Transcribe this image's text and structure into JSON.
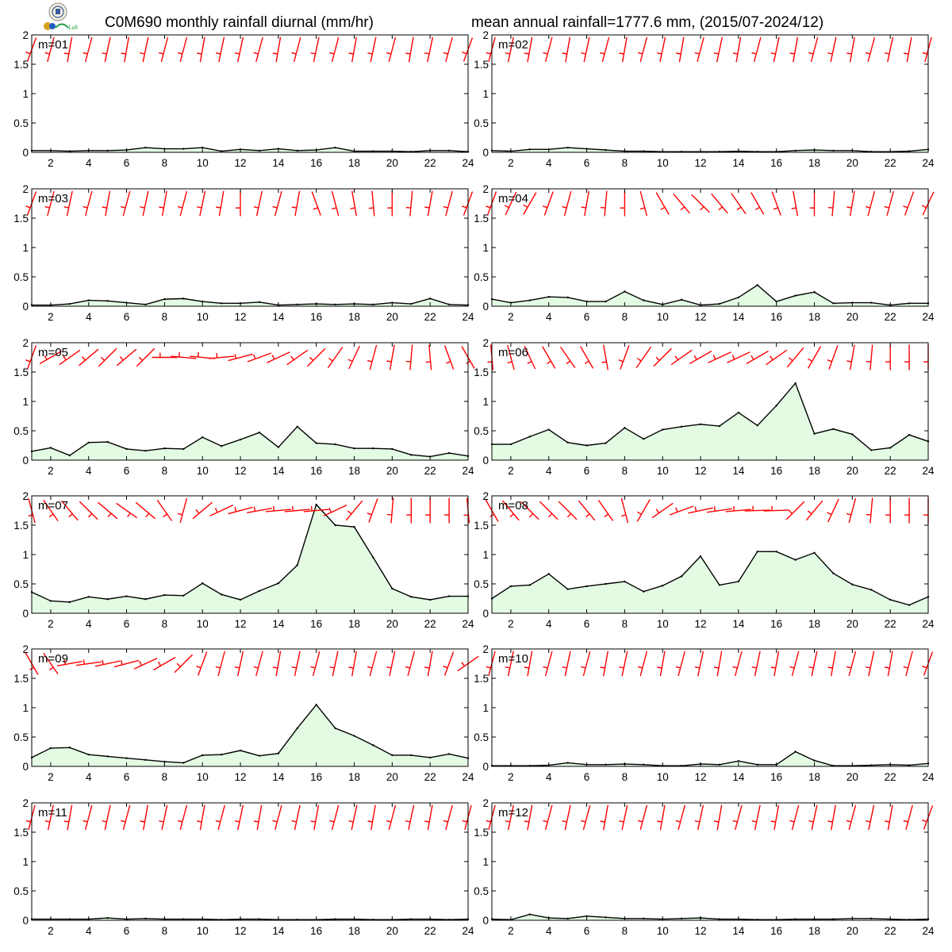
{
  "header": {
    "title_left": "C0M690 monthly rainfall diurnal (mm/hr)",
    "title_right": "mean annual rainfall=1777.6 mm, (2015/07-2024/12)"
  },
  "colors": {
    "fill": "#e3fbe3",
    "line": "#000000",
    "wind": "#ff0000",
    "frame": "#000000"
  },
  "logo": {
    "icon": "emblem-icon",
    "text": "Lab"
  },
  "chart_data": [
    {
      "type": "area",
      "label": "m=01",
      "x": [
        1,
        2,
        3,
        4,
        5,
        6,
        7,
        8,
        9,
        10,
        11,
        12,
        13,
        14,
        15,
        16,
        17,
        18,
        19,
        20,
        21,
        22,
        23,
        24
      ],
      "values": [
        0.03,
        0.03,
        0.02,
        0.03,
        0.03,
        0.04,
        0.08,
        0.06,
        0.06,
        0.08,
        0.02,
        0.05,
        0.03,
        0.06,
        0.03,
        0.04,
        0.08,
        0.02,
        0.02,
        0.02,
        0.01,
        0.03,
        0.03,
        0.01
      ],
      "wind_dir": [
        200,
        195,
        190,
        195,
        192,
        190,
        192,
        195,
        195,
        190,
        192,
        192,
        195,
        190,
        195,
        192,
        195,
        190,
        192,
        195,
        190,
        192,
        195,
        200
      ],
      "ylim": [
        0,
        2
      ],
      "yticks": [
        0,
        0.5,
        1,
        1.5,
        2
      ],
      "xticks": [
        2,
        4,
        6,
        8,
        10,
        12,
        14,
        16,
        18,
        20,
        22,
        24
      ]
    },
    {
      "type": "area",
      "label": "m=02",
      "x": [
        1,
        2,
        3,
        4,
        5,
        6,
        7,
        8,
        9,
        10,
        11,
        12,
        13,
        14,
        15,
        16,
        17,
        18,
        19,
        20,
        21,
        22,
        23,
        24
      ],
      "values": [
        0.03,
        0.02,
        0.05,
        0.05,
        0.08,
        0.06,
        0.04,
        0.02,
        0.02,
        0.01,
        0.01,
        0.01,
        0.01,
        0.02,
        0.01,
        0.01,
        0.03,
        0.04,
        0.03,
        0.03,
        0.01,
        0.01,
        0.02,
        0.05
      ],
      "wind_dir": [
        195,
        192,
        190,
        195,
        190,
        192,
        195,
        190,
        195,
        192,
        190,
        195,
        192,
        190,
        195,
        192,
        190,
        195,
        192,
        190,
        195,
        192,
        190,
        195
      ],
      "ylim": [
        0,
        2
      ],
      "yticks": [
        0,
        0.5,
        1,
        1.5,
        2
      ],
      "xticks": [
        2,
        4,
        6,
        8,
        10,
        12,
        14,
        16,
        18,
        20,
        22,
        24
      ]
    },
    {
      "type": "area",
      "label": "m=03",
      "x": [
        1,
        2,
        3,
        4,
        5,
        6,
        7,
        8,
        9,
        10,
        11,
        12,
        13,
        14,
        15,
        16,
        17,
        18,
        19,
        20,
        21,
        22,
        23,
        24
      ],
      "values": [
        0.02,
        0.02,
        0.04,
        0.1,
        0.09,
        0.06,
        0.03,
        0.12,
        0.13,
        0.08,
        0.05,
        0.05,
        0.07,
        0.02,
        0.03,
        0.04,
        0.03,
        0.04,
        0.03,
        0.06,
        0.04,
        0.13,
        0.03,
        0.02
      ],
      "wind_dir": [
        200,
        195,
        192,
        195,
        190,
        195,
        192,
        190,
        195,
        192,
        190,
        180,
        192,
        195,
        190,
        160,
        165,
        170,
        175,
        180,
        185,
        190,
        195,
        200
      ],
      "ylim": [
        0,
        2
      ],
      "yticks": [
        0,
        0.5,
        1,
        1.5,
        2
      ],
      "xticks": [
        2,
        4,
        6,
        8,
        10,
        12,
        14,
        16,
        18,
        20,
        22,
        24
      ]
    },
    {
      "type": "area",
      "label": "m=04",
      "x": [
        1,
        2,
        3,
        4,
        5,
        6,
        7,
        8,
        9,
        10,
        11,
        12,
        13,
        14,
        15,
        16,
        17,
        18,
        19,
        20,
        21,
        22,
        23,
        24
      ],
      "values": [
        0.12,
        0.06,
        0.1,
        0.16,
        0.15,
        0.08,
        0.08,
        0.25,
        0.1,
        0.03,
        0.11,
        0.02,
        0.04,
        0.15,
        0.36,
        0.08,
        0.18,
        0.24,
        0.05,
        0.06,
        0.06,
        0.02,
        0.05,
        0.05
      ],
      "wind_dir": [
        200,
        205,
        210,
        200,
        195,
        190,
        185,
        180,
        165,
        150,
        140,
        135,
        140,
        145,
        150,
        160,
        170,
        180,
        185,
        190,
        195,
        195,
        200,
        205
      ],
      "ylim": [
        0,
        2
      ],
      "yticks": [
        0,
        0.5,
        1,
        1.5,
        2
      ],
      "xticks": [
        2,
        4,
        6,
        8,
        10,
        12,
        14,
        16,
        18,
        20,
        22,
        24
      ]
    },
    {
      "type": "area",
      "label": "m=05",
      "x": [
        1,
        2,
        3,
        4,
        5,
        6,
        7,
        8,
        9,
        10,
        11,
        12,
        13,
        14,
        15,
        16,
        17,
        18,
        19,
        20,
        21,
        22,
        23,
        24
      ],
      "values": [
        0.15,
        0.21,
        0.08,
        0.3,
        0.31,
        0.19,
        0.16,
        0.2,
        0.19,
        0.39,
        0.24,
        0.35,
        0.47,
        0.22,
        0.57,
        0.29,
        0.27,
        0.2,
        0.2,
        0.19,
        0.09,
        0.06,
        0.12,
        0.07
      ],
      "wind_dir": [
        200,
        240,
        235,
        230,
        225,
        230,
        225,
        270,
        275,
        275,
        265,
        255,
        250,
        245,
        235,
        225,
        215,
        205,
        195,
        190,
        185,
        175,
        160,
        150
      ],
      "ylim": [
        0,
        2
      ],
      "yticks": [
        0,
        0.5,
        1,
        1.5,
        2
      ],
      "xticks": [
        2,
        4,
        6,
        8,
        10,
        12,
        14,
        16,
        18,
        20,
        22,
        24
      ]
    },
    {
      "type": "area",
      "label": "m=06",
      "x": [
        1,
        2,
        3,
        4,
        5,
        6,
        7,
        8,
        9,
        10,
        11,
        12,
        13,
        14,
        15,
        16,
        17,
        18,
        19,
        20,
        21,
        22,
        23,
        24
      ],
      "values": [
        0.27,
        0.27,
        0.4,
        0.52,
        0.3,
        0.25,
        0.29,
        0.55,
        0.36,
        0.52,
        0.57,
        0.61,
        0.58,
        0.81,
        0.59,
        0.93,
        1.31,
        0.45,
        0.53,
        0.44,
        0.17,
        0.21,
        0.43,
        0.32
      ],
      "wind_dir": [
        175,
        165,
        155,
        150,
        145,
        150,
        170,
        200,
        215,
        225,
        235,
        240,
        245,
        245,
        240,
        235,
        220,
        210,
        200,
        190,
        185,
        180,
        180,
        180
      ],
      "ylim": [
        0,
        2
      ],
      "yticks": [
        0,
        0.5,
        1,
        1.5,
        2
      ],
      "xticks": [
        2,
        4,
        6,
        8,
        10,
        12,
        14,
        16,
        18,
        20,
        22,
        24
      ]
    },
    {
      "type": "area",
      "label": "m=07",
      "x": [
        1,
        2,
        3,
        4,
        5,
        6,
        7,
        8,
        9,
        10,
        11,
        12,
        13,
        14,
        15,
        16,
        17,
        18,
        19,
        20,
        21,
        22,
        23,
        24
      ],
      "values": [
        0.36,
        0.21,
        0.19,
        0.28,
        0.24,
        0.29,
        0.24,
        0.31,
        0.3,
        0.51,
        0.32,
        0.23,
        0.38,
        0.51,
        0.82,
        1.85,
        1.5,
        1.47,
        0.95,
        0.42,
        0.28,
        0.23,
        0.29,
        0.29
      ],
      "wind_dir": [
        165,
        145,
        140,
        135,
        130,
        125,
        130,
        145,
        195,
        230,
        245,
        255,
        260,
        265,
        265,
        265,
        245,
        220,
        200,
        185,
        180,
        180,
        180,
        175
      ],
      "ylim": [
        0,
        2
      ],
      "yticks": [
        0,
        0.5,
        1,
        1.5,
        2
      ],
      "xticks": [
        2,
        4,
        6,
        8,
        10,
        12,
        14,
        16,
        18,
        20,
        22,
        24
      ]
    },
    {
      "type": "area",
      "label": "m=08",
      "x": [
        1,
        2,
        3,
        4,
        5,
        6,
        7,
        8,
        9,
        10,
        11,
        12,
        13,
        14,
        15,
        16,
        17,
        18,
        19,
        20,
        21,
        22,
        23,
        24
      ],
      "values": [
        0.25,
        0.46,
        0.48,
        0.67,
        0.41,
        0.46,
        0.5,
        0.54,
        0.37,
        0.47,
        0.63,
        0.97,
        0.48,
        0.54,
        1.05,
        1.05,
        0.91,
        1.03,
        0.68,
        0.49,
        0.4,
        0.23,
        0.14,
        0.28
      ],
      "wind_dir": [
        150,
        140,
        135,
        135,
        135,
        140,
        145,
        165,
        210,
        235,
        250,
        258,
        262,
        265,
        268,
        268,
        225,
        220,
        205,
        195,
        185,
        180,
        180,
        180
      ],
      "ylim": [
        0,
        2
      ],
      "yticks": [
        0,
        0.5,
        1,
        1.5,
        2
      ],
      "xticks": [
        2,
        4,
        6,
        8,
        10,
        12,
        14,
        16,
        18,
        20,
        22,
        24
      ]
    },
    {
      "type": "area",
      "label": "m=09",
      "x": [
        1,
        2,
        3,
        4,
        5,
        6,
        7,
        8,
        9,
        10,
        11,
        12,
        13,
        14,
        15,
        16,
        17,
        18,
        19,
        20,
        21,
        22,
        23,
        24
      ],
      "values": [
        0.15,
        0.31,
        0.32,
        0.2,
        0.17,
        0.14,
        0.11,
        0.08,
        0.06,
        0.19,
        0.2,
        0.27,
        0.18,
        0.22,
        0.65,
        1.05,
        0.65,
        0.52,
        0.36,
        0.19,
        0.19,
        0.15,
        0.21,
        0.14
      ],
      "wind_dir": [
        150,
        145,
        260,
        262,
        258,
        255,
        245,
        240,
        225,
        200,
        195,
        192,
        195,
        190,
        192,
        195,
        192,
        190,
        195,
        192,
        195,
        190,
        200,
        235
      ],
      "ylim": [
        0,
        2
      ],
      "yticks": [
        0,
        0.5,
        1,
        1.5,
        2
      ],
      "xticks": [
        2,
        4,
        6,
        8,
        10,
        12,
        14,
        16,
        18,
        20,
        22,
        24
      ]
    },
    {
      "type": "area",
      "label": "m=10",
      "x": [
        1,
        2,
        3,
        4,
        5,
        6,
        7,
        8,
        9,
        10,
        11,
        12,
        13,
        14,
        15,
        16,
        17,
        18,
        19,
        20,
        21,
        22,
        23,
        24
      ],
      "values": [
        0.01,
        0.01,
        0.01,
        0.02,
        0.06,
        0.03,
        0.03,
        0.04,
        0.03,
        0.01,
        0.01,
        0.04,
        0.03,
        0.09,
        0.03,
        0.03,
        0.25,
        0.1,
        0.01,
        0.01,
        0.02,
        0.03,
        0.02,
        0.05
      ],
      "wind_dir": [
        195,
        192,
        190,
        195,
        192,
        195,
        190,
        192,
        195,
        190,
        195,
        192,
        190,
        195,
        192,
        190,
        195,
        192,
        190,
        195,
        192,
        190,
        195,
        200
      ],
      "ylim": [
        0,
        2
      ],
      "yticks": [
        0,
        0.5,
        1,
        1.5,
        2
      ],
      "xticks": [
        2,
        4,
        6,
        8,
        10,
        12,
        14,
        16,
        18,
        20,
        22,
        24
      ]
    },
    {
      "type": "area",
      "label": "m=11",
      "x": [
        1,
        2,
        3,
        4,
        5,
        6,
        7,
        8,
        9,
        10,
        11,
        12,
        13,
        14,
        15,
        16,
        17,
        18,
        19,
        20,
        21,
        22,
        23,
        24
      ],
      "values": [
        0.02,
        0.02,
        0.02,
        0.02,
        0.04,
        0.02,
        0.03,
        0.02,
        0.02,
        0.02,
        0.01,
        0.02,
        0.02,
        0.01,
        0.01,
        0.01,
        0.02,
        0.02,
        0.01,
        0.01,
        0.02,
        0.02,
        0.01,
        0.02
      ],
      "wind_dir": [
        195,
        192,
        190,
        195,
        192,
        195,
        190,
        192,
        195,
        190,
        195,
        192,
        190,
        195,
        192,
        190,
        195,
        192,
        190,
        195,
        192,
        190,
        195,
        195
      ],
      "ylim": [
        0,
        2
      ],
      "yticks": [
        0,
        0.5,
        1,
        1.5,
        2
      ],
      "xticks": [
        2,
        4,
        6,
        8,
        10,
        12,
        14,
        16,
        18,
        20,
        22,
        24
      ]
    },
    {
      "type": "area",
      "label": "m=12",
      "x": [
        1,
        2,
        3,
        4,
        5,
        6,
        7,
        8,
        9,
        10,
        11,
        12,
        13,
        14,
        15,
        16,
        17,
        18,
        19,
        20,
        21,
        22,
        23,
        24
      ],
      "values": [
        0.02,
        0.01,
        0.1,
        0.04,
        0.03,
        0.07,
        0.05,
        0.03,
        0.03,
        0.02,
        0.03,
        0.04,
        0.02,
        0.02,
        0.01,
        0.01,
        0.02,
        0.02,
        0.02,
        0.03,
        0.03,
        0.02,
        0.01,
        0.02
      ],
      "wind_dir": [
        195,
        192,
        190,
        195,
        192,
        195,
        190,
        192,
        195,
        190,
        195,
        192,
        190,
        195,
        192,
        190,
        195,
        192,
        190,
        195,
        192,
        190,
        195,
        200
      ],
      "ylim": [
        0,
        2
      ],
      "yticks": [
        0,
        0.5,
        1,
        1.5,
        2
      ],
      "xticks": [
        2,
        4,
        6,
        8,
        10,
        12,
        14,
        16,
        18,
        20,
        22,
        24
      ]
    }
  ]
}
